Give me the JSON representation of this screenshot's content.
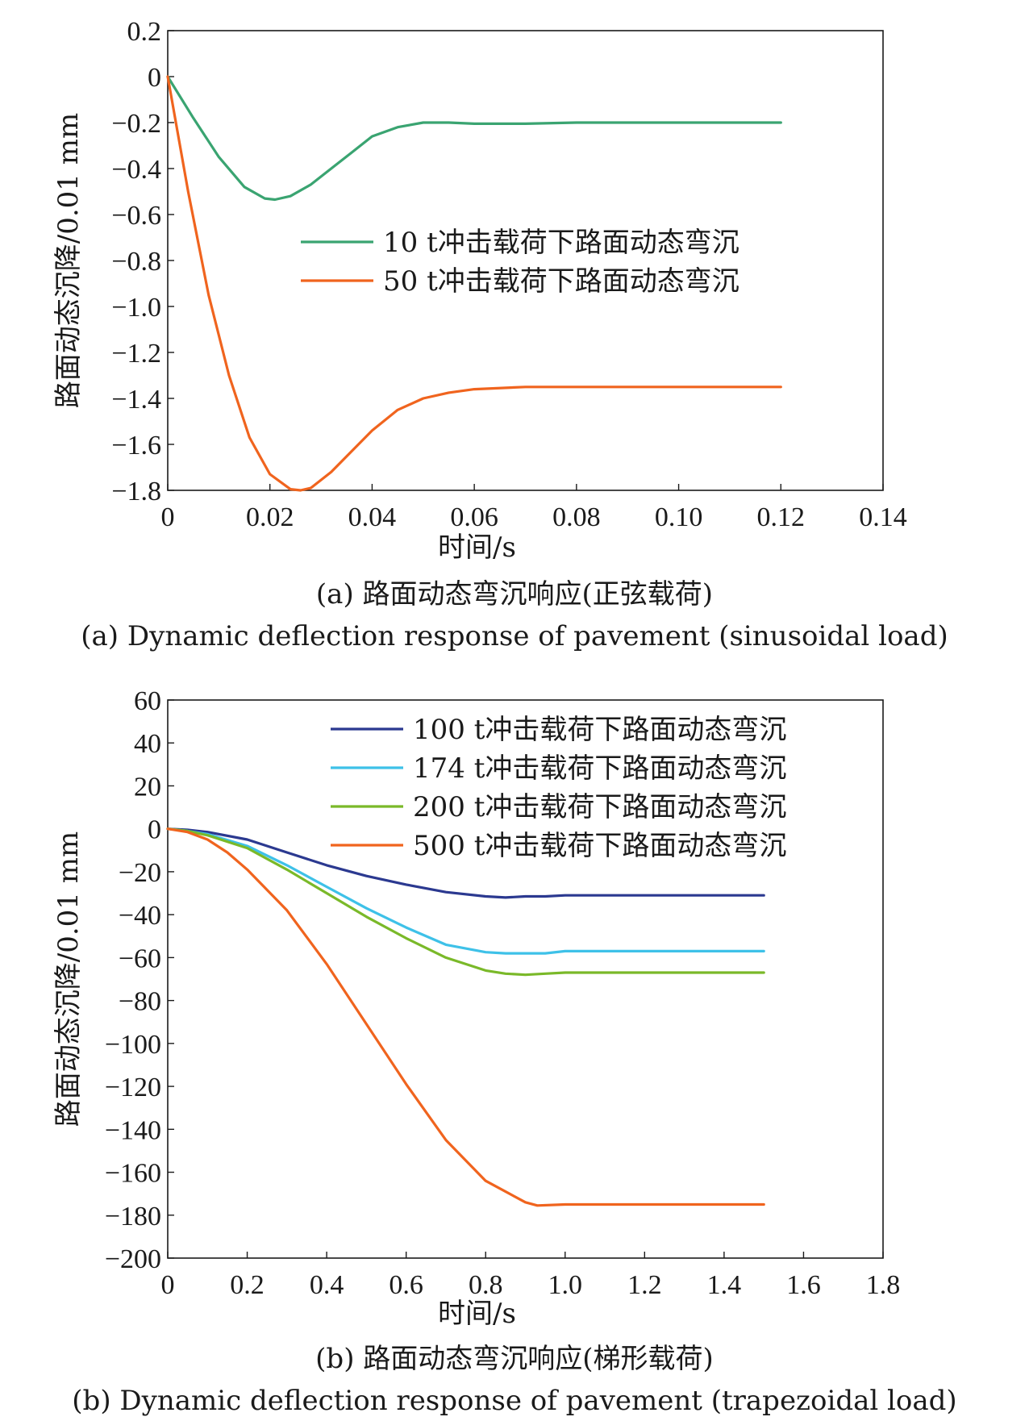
{
  "chart_data": [
    {
      "type": "line",
      "xlabel": "时间/s",
      "ylabel": "路面动态沉降/0.01 mm",
      "xlim": [
        0,
        0.14
      ],
      "ylim": [
        -1.8,
        0.2
      ],
      "xticks": [
        "0",
        "0.02",
        "0.04",
        "0.06",
        "0.08",
        "0.10",
        "0.12",
        "0.14"
      ],
      "yticks": [
        "0.2",
        "0",
        "−0.2",
        "−0.4",
        "−0.6",
        "−0.8",
        "−1.0",
        "−1.2",
        "−1.4",
        "−1.6",
        "−1.8"
      ],
      "legend_position": "center-right",
      "caption_cn": "(a) 路面动态弯沉响应(正弦载荷)",
      "caption_en": "(a) Dynamic deflection response of pavement (sinusoidal load)",
      "series": [
        {
          "name": "10 t冲击载荷下路面动态弯沉",
          "color": "#3aa471",
          "x": [
            0,
            0.005,
            0.01,
            0.015,
            0.019,
            0.021,
            0.024,
            0.028,
            0.032,
            0.036,
            0.04,
            0.045,
            0.05,
            0.055,
            0.06,
            0.07,
            0.08,
            0.09,
            0.1,
            0.11,
            0.12
          ],
          "y": [
            0,
            -0.18,
            -0.35,
            -0.48,
            -0.53,
            -0.535,
            -0.52,
            -0.47,
            -0.4,
            -0.33,
            -0.26,
            -0.22,
            -0.2,
            -0.2,
            -0.205,
            -0.205,
            -0.2,
            -0.2,
            -0.2,
            -0.2,
            -0.2
          ]
        },
        {
          "name": "50 t冲击载荷下路面动态弯沉",
          "color": "#f0641e",
          "x": [
            0,
            0.004,
            0.008,
            0.012,
            0.016,
            0.02,
            0.024,
            0.026,
            0.028,
            0.032,
            0.036,
            0.04,
            0.045,
            0.05,
            0.055,
            0.06,
            0.07,
            0.08,
            0.09,
            0.1,
            0.11,
            0.12
          ],
          "y": [
            0,
            -0.5,
            -0.95,
            -1.3,
            -1.57,
            -1.73,
            -1.795,
            -1.8,
            -1.79,
            -1.72,
            -1.63,
            -1.54,
            -1.45,
            -1.4,
            -1.375,
            -1.36,
            -1.35,
            -1.35,
            -1.35,
            -1.35,
            -1.35,
            -1.35
          ]
        }
      ]
    },
    {
      "type": "line",
      "xlabel": "时间/s",
      "ylabel": "路面动态沉降/0.01 mm",
      "xlim": [
        0,
        1.8
      ],
      "ylim": [
        -200,
        60
      ],
      "xticks": [
        "0",
        "0.2",
        "0.4",
        "0.6",
        "0.8",
        "1.0",
        "1.2",
        "1.4",
        "1.6",
        "1.8"
      ],
      "yticks": [
        "60",
        "40",
        "20",
        "0",
        "−20",
        "−40",
        "−60",
        "−80",
        "−100",
        "−120",
        "−140",
        "−160",
        "−180",
        "−200"
      ],
      "legend_position": "top-right",
      "caption_cn": "(b) 路面动态弯沉响应(梯形载荷)",
      "caption_en": "(b) Dynamic deflection response of pavement (trapezoidal load)",
      "series": [
        {
          "name": "100 t冲击载荷下路面动态弯沉",
          "color": "#2b3990",
          "x": [
            0,
            0.05,
            0.1,
            0.2,
            0.3,
            0.4,
            0.5,
            0.6,
            0.7,
            0.8,
            0.85,
            0.9,
            0.95,
            1.0,
            1.2,
            1.4,
            1.5
          ],
          "y": [
            0,
            -0.5,
            -1.5,
            -5,
            -11,
            -17,
            -22,
            -26,
            -29.5,
            -31.5,
            -32,
            -31.5,
            -31.5,
            -31,
            -31,
            -31,
            -31
          ]
        },
        {
          "name": "174 t冲击载荷下路面动态弯沉",
          "color": "#3ec1e8",
          "x": [
            0,
            0.05,
            0.1,
            0.2,
            0.3,
            0.4,
            0.5,
            0.6,
            0.7,
            0.8,
            0.85,
            0.9,
            0.95,
            1.0,
            1.2,
            1.4,
            1.5
          ],
          "y": [
            0,
            -1,
            -2.5,
            -8,
            -17,
            -27,
            -37,
            -46,
            -54,
            -57.5,
            -58,
            -58,
            -58,
            -57,
            -57,
            -57,
            -57
          ]
        },
        {
          "name": "200 t冲击载荷下路面动态弯沉",
          "color": "#7ab929",
          "x": [
            0,
            0.05,
            0.1,
            0.2,
            0.3,
            0.4,
            0.5,
            0.6,
            0.7,
            0.8,
            0.85,
            0.9,
            0.95,
            1.0,
            1.2,
            1.4,
            1.5
          ],
          "y": [
            0,
            -1,
            -3,
            -9,
            -19,
            -30,
            -41,
            -51,
            -60,
            -66,
            -67.5,
            -68,
            -67.5,
            -67,
            -67,
            -67,
            -67
          ]
        },
        {
          "name": "500 t冲击载荷下路面动态弯沉",
          "color": "#f0641e",
          "x": [
            0,
            0.05,
            0.1,
            0.15,
            0.2,
            0.3,
            0.4,
            0.5,
            0.6,
            0.7,
            0.8,
            0.9,
            0.93,
            1.0,
            1.2,
            1.4,
            1.5
          ],
          "y": [
            0,
            -1.5,
            -5,
            -11,
            -19,
            -38,
            -63,
            -91,
            -119,
            -145,
            -164,
            -174,
            -175.5,
            -175,
            -175,
            -175,
            -175
          ]
        }
      ]
    }
  ]
}
